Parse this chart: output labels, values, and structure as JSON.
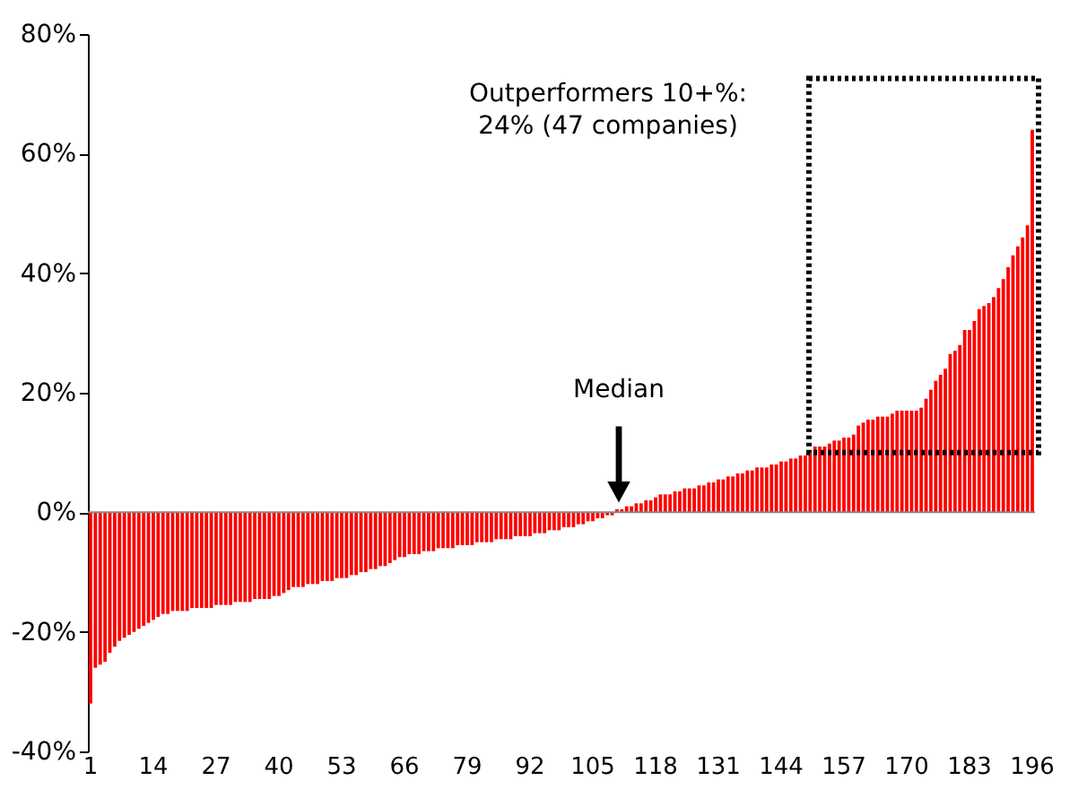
{
  "chart_data": {
    "type": "bar",
    "categories": [
      "1",
      null,
      null,
      null,
      null,
      null,
      null,
      null,
      null,
      null,
      null,
      null,
      null,
      "14",
      null,
      null,
      null,
      null,
      null,
      null,
      null,
      null,
      null,
      null,
      null,
      null,
      "27",
      null,
      null,
      null,
      null,
      null,
      null,
      null,
      null,
      null,
      null,
      null,
      null,
      "40",
      null,
      null,
      null,
      null,
      null,
      null,
      null,
      null,
      null,
      null,
      null,
      null,
      "53",
      null,
      null,
      null,
      null,
      null,
      null,
      null,
      null,
      null,
      null,
      null,
      null,
      "66",
      null,
      null,
      null,
      null,
      null,
      null,
      null,
      null,
      null,
      null,
      null,
      null,
      "79",
      null,
      null,
      null,
      null,
      null,
      null,
      null,
      null,
      null,
      null,
      null,
      null,
      "92",
      null,
      null,
      null,
      null,
      null,
      null,
      null,
      null,
      null,
      null,
      null,
      null,
      "105",
      null,
      null,
      null,
      null,
      null,
      null,
      null,
      null,
      null,
      null,
      null,
      null,
      "118",
      null,
      null,
      null,
      null,
      null,
      null,
      null,
      null,
      null,
      null,
      null,
      null,
      "131",
      null,
      null,
      null,
      null,
      null,
      null,
      null,
      null,
      null,
      null,
      null,
      null,
      "144",
      null,
      null,
      null,
      null,
      null,
      null,
      null,
      null,
      null,
      null,
      null,
      null,
      "157",
      null,
      null,
      null,
      null,
      null,
      null,
      null,
      null,
      null,
      null,
      null,
      null,
      "170",
      null,
      null,
      null,
      null,
      null,
      null,
      null,
      null,
      null,
      null,
      null,
      null,
      "183",
      null,
      null,
      null,
      null,
      null,
      null,
      null,
      null,
      null,
      null,
      null,
      null,
      "196"
    ],
    "values": [
      -32,
      -26,
      -25.5,
      -25,
      -23.5,
      -22.5,
      -21.5,
      -21,
      -20.5,
      -20,
      -19.5,
      -19,
      -18.5,
      -18,
      -17.5,
      -17,
      -17,
      -16.5,
      -16.5,
      -16.5,
      -16.5,
      -16,
      -16,
      -16,
      -16,
      -16,
      -15.5,
      -15.5,
      -15.5,
      -15.5,
      -15,
      -15,
      -15,
      -15,
      -14.5,
      -14.5,
      -14.5,
      -14.5,
      -14,
      -14,
      -13.5,
      -13,
      -12.5,
      -12.5,
      -12.5,
      -12,
      -12,
      -12,
      -11.5,
      -11.5,
      -11.5,
      -11,
      -11,
      -11,
      -10.5,
      -10.5,
      -10,
      -10,
      -9.5,
      -9.5,
      -9,
      -9,
      -8.5,
      -8,
      -7.5,
      -7.5,
      -7,
      -7,
      -7,
      -6.5,
      -6.5,
      -6.5,
      -6,
      -6,
      -6,
      -6,
      -5.5,
      -5.5,
      -5.5,
      -5.5,
      -5,
      -5,
      -5,
      -5,
      -4.5,
      -4.5,
      -4.5,
      -4.5,
      -4,
      -4,
      -4,
      -4,
      -3.5,
      -3.5,
      -3.5,
      -3,
      -3,
      -3,
      -2.5,
      -2.5,
      -2.5,
      -2,
      -2,
      -1.5,
      -1.5,
      -1,
      -1,
      -0.5,
      -0.5,
      0.5,
      0.5,
      1,
      1,
      1.5,
      1.5,
      2,
      2,
      2.5,
      3,
      3,
      3,
      3.5,
      3.5,
      4,
      4,
      4,
      4.5,
      4.5,
      5,
      5,
      5.5,
      5.5,
      6,
      6,
      6.5,
      6.5,
      7,
      7,
      7.5,
      7.5,
      7.5,
      8,
      8,
      8.5,
      8.5,
      9,
      9,
      9.5,
      9.5,
      10,
      11,
      11,
      11,
      11.5,
      12,
      12,
      12.5,
      12.5,
      13,
      14.5,
      15,
      15.5,
      15.5,
      16,
      16,
      16,
      16.5,
      17,
      17,
      17,
      17,
      17,
      17.5,
      19,
      20.5,
      22,
      23,
      24,
      26.5,
      27,
      28,
      30.5,
      30.5,
      32,
      34,
      34.5,
      35,
      36,
      37.5,
      39,
      41,
      43,
      44.5,
      46,
      48,
      64
    ],
    "color": "#ff0000",
    "ylim": [
      -40,
      80
    ],
    "yticks": [
      {
        "value": -40,
        "label": "-40%"
      },
      {
        "value": -20,
        "label": "-20%"
      },
      {
        "value": 0,
        "label": "0%"
      },
      {
        "value": 20,
        "label": "20%"
      },
      {
        "value": 40,
        "label": "40%"
      },
      {
        "value": 60,
        "label": "60%"
      },
      {
        "value": 80,
        "label": "80%"
      }
    ],
    "grid": false,
    "ref_lines": [
      {
        "axis": "y",
        "value": 0,
        "color": "#888888"
      }
    ],
    "annotations": [
      "Outperformers 10+%:\n24% (47 companies)",
      "Median"
    ]
  }
}
